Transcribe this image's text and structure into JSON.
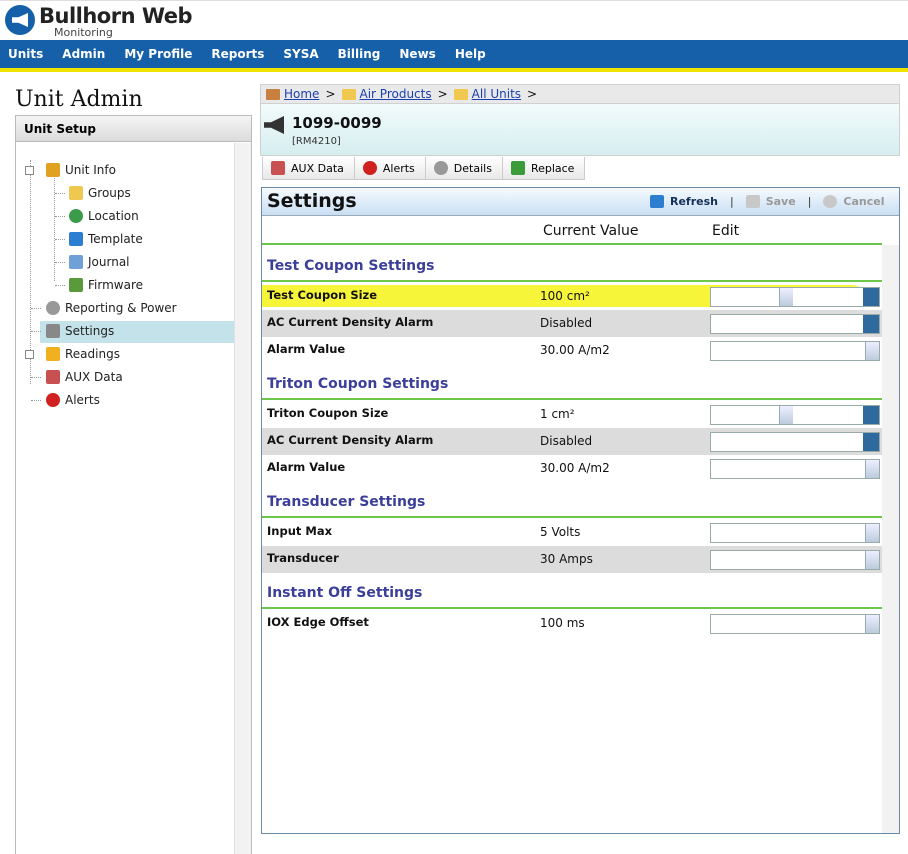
{
  "header": {
    "logo_title": "Bullhorn Web",
    "logo_subtitle": "Monitoring"
  },
  "nav": [
    "Units",
    "Admin",
    "My Profile",
    "Reports",
    "SYSA",
    "Billing",
    "News",
    "Help"
  ],
  "sidebar": {
    "title": "Unit Admin",
    "panel_title": "Unit Setup",
    "tree": [
      {
        "label": "Unit Info",
        "expander": "minus",
        "icon": "pencil",
        "children": [
          {
            "label": "Groups",
            "icon": "folder"
          },
          {
            "label": "Location",
            "icon": "globe"
          },
          {
            "label": "Template",
            "icon": "download"
          },
          {
            "label": "Journal",
            "icon": "book"
          },
          {
            "label": "Firmware",
            "icon": "chip"
          }
        ]
      },
      {
        "label": "Reporting & Power",
        "icon": "clock"
      },
      {
        "label": "Settings",
        "icon": "wrench",
        "selected": true
      },
      {
        "label": "Readings",
        "expander": "plus",
        "icon": "bolt"
      },
      {
        "label": "AUX Data",
        "icon": "cubes"
      },
      {
        "label": "Alerts",
        "icon": "alert"
      }
    ]
  },
  "breadcrumb": {
    "items": [
      "Home",
      "Air Products",
      "All Units"
    ],
    "separator": ">"
  },
  "unit": {
    "id": "1099-0099",
    "model": "[RM4210]"
  },
  "tabs": [
    {
      "label": "AUX Data",
      "icon": "cubes"
    },
    {
      "label": "Alerts",
      "icon": "alert"
    },
    {
      "label": "Details",
      "icon": "gear"
    },
    {
      "label": "Replace",
      "icon": "recycle"
    }
  ],
  "settings": {
    "title": "Settings",
    "actions": [
      {
        "label": "Refresh",
        "enabled": true
      },
      {
        "label": "Save",
        "enabled": false
      },
      {
        "label": "Cancel",
        "enabled": false
      }
    ],
    "action_separator": "|",
    "columns": [
      "Current Value",
      "Edit"
    ],
    "sections": [
      {
        "title": "Test Coupon Settings",
        "rows": [
          {
            "label": "Test Coupon Size",
            "value": "100 cm²",
            "edit": "unit-select",
            "highlight": true
          },
          {
            "label": "AC Current Density Alarm",
            "value": "Disabled",
            "edit": "select"
          },
          {
            "label": "Alarm Value",
            "value": "30.00 A/m2",
            "edit": "number"
          }
        ]
      },
      {
        "title": "Triton Coupon Settings",
        "rows": [
          {
            "label": "Triton Coupon Size",
            "value": "1 cm²",
            "edit": "unit-select"
          },
          {
            "label": "AC Current Density Alarm",
            "value": "Disabled",
            "edit": "select"
          },
          {
            "label": "Alarm Value",
            "value": "30.00 A/m2",
            "edit": "number"
          }
        ]
      },
      {
        "title": "Transducer Settings",
        "rows": [
          {
            "label": "Input Max",
            "value": "5 Volts",
            "edit": "number"
          },
          {
            "label": "Transducer",
            "value": "30 Amps",
            "edit": "number"
          }
        ]
      },
      {
        "title": "Instant Off Settings",
        "rows": [
          {
            "label": "IOX Edge Offset",
            "value": "100 ms",
            "edit": "number"
          }
        ]
      }
    ]
  }
}
